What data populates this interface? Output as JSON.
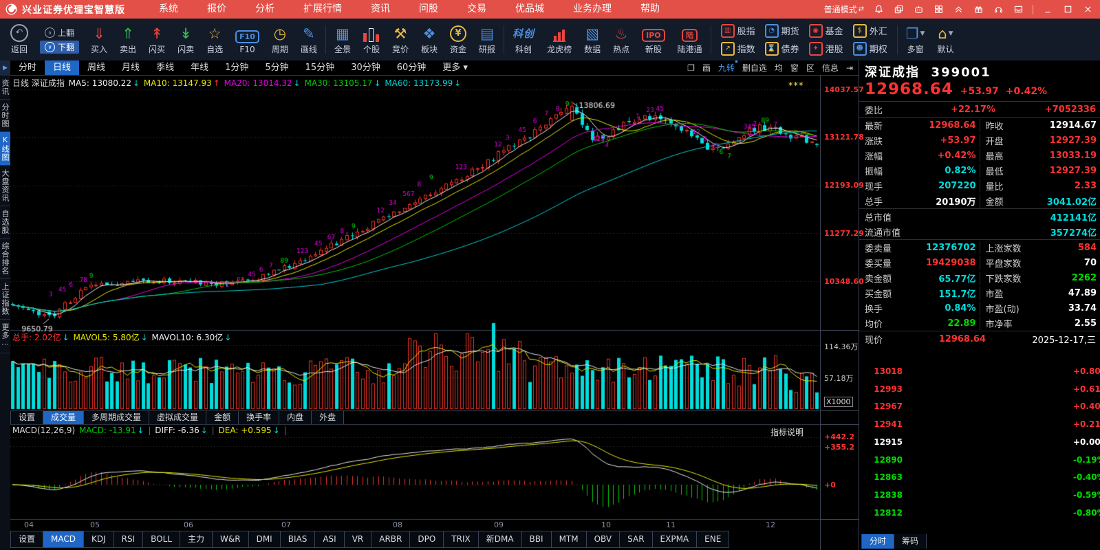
{
  "colors": {
    "accent_red": "#e25048",
    "up_red": "#ff3232",
    "down_cyan": "#00dcdc",
    "green": "#00dc00",
    "yellow": "#e8e800",
    "magenta": "#e800e8",
    "selected_blue": "#1f66c5",
    "panel_border": "#3a4254"
  },
  "titlebar": {
    "app_title": "兴业证券优理宝智慧版",
    "menus": [
      "系统",
      "报价",
      "分析",
      "扩展行情",
      "资讯",
      "问股",
      "交易",
      "优品城",
      "业务办理",
      "帮助"
    ],
    "mode_label": "普通模式",
    "mode_swap_icon": "⇄",
    "window_icons": [
      "bell",
      "window-copy",
      "robot",
      "apps-grid",
      "double-chevron-up",
      "gift",
      "headset",
      "inbox"
    ],
    "window_controls": [
      "minimize",
      "maximize",
      "close"
    ]
  },
  "toolbar": {
    "back_label": "返回",
    "flip_up": "上翻",
    "flip_down": "下翻",
    "items": [
      {
        "label": "买入",
        "icon": "buy-tray-icon",
        "glyph": "⇓",
        "color": "#e8463e"
      },
      {
        "label": "卖出",
        "icon": "sell-tray-icon",
        "glyph": "⇑",
        "color": "#37c14e"
      },
      {
        "label": "闪买",
        "icon": "flash-buy-cart-icon",
        "glyph": "↟",
        "color": "#e8463e"
      },
      {
        "label": "闪卖",
        "icon": "flash-sell-cart-icon",
        "glyph": "↡",
        "color": "#37c14e"
      },
      {
        "label": "自选",
        "icon": "star-icon",
        "glyph": "☆",
        "color": "#e8b93c"
      },
      {
        "label": "F10",
        "icon": "f10-icon",
        "glyph": "F10",
        "color": "#4a90e2",
        "style": "boxed"
      },
      {
        "label": "周期",
        "icon": "clock-icon",
        "glyph": "◷",
        "color": "#e8b93c"
      },
      {
        "label": "画线",
        "icon": "pencil-icon",
        "glyph": "✎",
        "color": "#4a90e2"
      },
      {
        "sep": true
      },
      {
        "label": "全景",
        "icon": "grid-icon",
        "glyph": "▦",
        "color": "#4a90e2"
      },
      {
        "label": "个股",
        "icon": "candles-icon",
        "glyph": "",
        "color": "#e8463e",
        "style": "candles"
      },
      {
        "label": "竞价",
        "icon": "gavel-icon",
        "glyph": "⚒",
        "color": "#e8b93c"
      },
      {
        "label": "板块",
        "icon": "puzzle-icon",
        "glyph": "❖",
        "color": "#4a90e2"
      },
      {
        "label": "资金",
        "icon": "yen-circle-icon",
        "glyph": "¥",
        "color": "#e8b93c",
        "style": "circled"
      },
      {
        "label": "研报",
        "icon": "report-doc-icon",
        "glyph": "▤",
        "color": "#4a90e2"
      },
      {
        "sep": true
      },
      {
        "label": "科创",
        "icon": "kechuang-logo-icon",
        "glyph": "科创",
        "color": "#4a90e2",
        "style": "textlogo"
      },
      {
        "label": "龙虎榜",
        "icon": "bar-chart-icon",
        "glyph": "",
        "color": "#e8463e",
        "style": "bars"
      },
      {
        "label": "数据",
        "icon": "data-monitor-icon",
        "glyph": "▧",
        "color": "#4a90e2"
      },
      {
        "label": "热点",
        "icon": "flame-icon",
        "glyph": "♨",
        "color": "#e8463e"
      },
      {
        "label": "新股",
        "icon": "ipo-doc-icon",
        "glyph": "IPO",
        "color": "#e8463e",
        "style": "boxed"
      },
      {
        "label": "陆港通",
        "icon": "lu-badge-icon",
        "glyph": "陆",
        "color": "#e8463e",
        "style": "boxed"
      },
      {
        "sep": true
      },
      {
        "grid": [
          {
            "label": "股指",
            "glyph": "▥",
            "color": "#e8463e"
          },
          {
            "label": "指数",
            "glyph": "↗",
            "color": "#e8b93c"
          },
          {
            "label": "期货",
            "glyph": "◔",
            "color": "#4a90e2"
          },
          {
            "label": "债券",
            "glyph": "⌛",
            "color": "#e8b93c"
          },
          {
            "label": "基金",
            "glyph": "◉",
            "color": "#e8463e"
          },
          {
            "label": "港股",
            "glyph": "✦",
            "color": "#e8463e"
          },
          {
            "label": "外汇",
            "glyph": "$",
            "color": "#e8b93c"
          },
          {
            "label": "期权",
            "glyph": "☻",
            "color": "#4a90e2"
          }
        ]
      },
      {
        "sep": true
      },
      {
        "label": "多窗",
        "icon": "multi-window-icon",
        "glyph": "❐",
        "color": "#4a90e2",
        "dropdown": true
      },
      {
        "label": "默认",
        "icon": "home-icon",
        "glyph": "⌂",
        "color": "#e8b93c",
        "dropdown": true
      }
    ]
  },
  "periodbar": {
    "tabs": [
      "分时",
      "日线",
      "周线",
      "月线",
      "季线",
      "年线",
      "1分钟",
      "5分钟",
      "15分钟",
      "30分钟",
      "60分钟"
    ],
    "selected": "日线",
    "more_label": "更多 ▾",
    "tools": [
      {
        "t": "❐"
      },
      {
        "t": "画"
      },
      {
        "t": "九转",
        "blue": true
      },
      {
        "t": "删自选"
      },
      {
        "t": "均"
      },
      {
        "t": "窗"
      },
      {
        "t": "区"
      },
      {
        "t": "信息"
      },
      {
        "t": "⇥"
      }
    ]
  },
  "sidebar": {
    "items": [
      "资讯",
      "分时图",
      "K线图",
      "大盘资讯",
      "自选股",
      "综合排名",
      "上证指数",
      "更多⋯"
    ],
    "selected": "K线图"
  },
  "kline_info": [
    {
      "t": "日线 深证成指 ",
      "c": "#dddddd"
    },
    {
      "t": "MA5: 13080.22",
      "c": "#f0f0f0"
    },
    {
      "t": "↓ ",
      "c": "#00dcdc"
    },
    {
      "t": "MA10: 13147.93",
      "c": "#e8e800"
    },
    {
      "t": "↑ ",
      "c": "#ff3232"
    },
    {
      "t": "MA20: 13014.32",
      "c": "#e800e8"
    },
    {
      "t": "↓ ",
      "c": "#00dcdc"
    },
    {
      "t": "MA30: 13105.17",
      "c": "#00c800"
    },
    {
      "t": "↓ ",
      "c": "#00dcdc"
    },
    {
      "t": "MA60: 13173.99",
      "c": "#00d2d2"
    },
    {
      "t": "↓",
      "c": "#00dcdc"
    }
  ],
  "volume_info": [
    {
      "t": "总手: 2.02亿",
      "c": "#ff3232"
    },
    {
      "t": "↓ ",
      "c": "#00dcdc"
    },
    {
      "t": "MAVOL5: 5.80亿",
      "c": "#e8e800"
    },
    {
      "t": "↓ ",
      "c": "#00dcdc"
    },
    {
      "t": "MAVOL10: 6.30亿",
      "c": "#f0f0f0"
    },
    {
      "t": "↓",
      "c": "#00dcdc"
    }
  ],
  "macd_info": [
    {
      "t": "MACD(12,26,9) ",
      "c": "#dddddd"
    },
    {
      "t": "MACD: -13.91",
      "c": "#00c800"
    },
    {
      "t": "↓",
      "c": "#00dcdc"
    },
    {
      "t": " | ",
      "c": "#666666"
    },
    {
      "t": "DIFF: -6.36",
      "c": "#f0f0f0"
    },
    {
      "t": "↓",
      "c": "#00dcdc"
    },
    {
      "t": " | ",
      "c": "#666666"
    },
    {
      "t": "DEA: +0.595",
      "c": "#e8e800"
    },
    {
      "t": "↓",
      "c": "#00dcdc"
    },
    {
      "t": " |",
      "c": "#666666"
    }
  ],
  "macd_note": "指标说明",
  "stars": "***",
  "gutter": {
    "price": [
      "14037.57",
      "13121.78",
      "12193.09",
      "11277.29",
      "10348.60"
    ],
    "volume": [
      "114.36万",
      "57.18万"
    ],
    "x1000": "X1000",
    "macd": [
      "+442.2",
      "+355.2",
      "+0"
    ]
  },
  "months": {
    "labels": [
      "04",
      "05",
      "06",
      "07",
      "08",
      "09",
      "10",
      "11",
      "12"
    ],
    "x": [
      20,
      116,
      252,
      394,
      556,
      703,
      859,
      953,
      1098
    ]
  },
  "volume_tabs": {
    "tabs": [
      "设置",
      "成交量",
      "多周期成交量",
      "虚拟成交量",
      "金额",
      "换手率",
      "内盘",
      "外盘"
    ],
    "selected": "成交量"
  },
  "indicator_tabs": {
    "tabs": [
      "设置",
      "MACD",
      "KDJ",
      "RSI",
      "BOLL",
      "主力",
      "W&R",
      "DMI",
      "BIAS",
      "ASI",
      "VR",
      "ARBR",
      "DPO",
      "TRIX",
      "新DMA",
      "BBI",
      "MTM",
      "OBV",
      "SAR",
      "EXPMA",
      "ENE"
    ],
    "selected": "MACD"
  },
  "quote": {
    "title": "深证成指",
    "code": "399001",
    "price": "12968.64",
    "chg": "+53.97",
    "pct": "+0.42%",
    "weibi": {
      "l": "委比",
      "v1": "+22.17%",
      "v2": "+7052336"
    },
    "rows_a": [
      {
        "l": "最新",
        "v": "12968.64",
        "c": "red",
        "l2": "昨收",
        "v2": "12914.67",
        "c2": "white"
      },
      {
        "l": "涨跌",
        "v": "+53.97",
        "c": "red",
        "l2": "开盘",
        "v2": "12927.39",
        "c2": "red"
      },
      {
        "l": "涨幅",
        "v": "+0.42%",
        "c": "red",
        "l2": "最高",
        "v2": "13033.19",
        "c2": "red"
      },
      {
        "l": "振幅",
        "v": "0.82%",
        "c": "cyan",
        "l2": "最低",
        "v2": "12927.39",
        "c2": "red"
      },
      {
        "l": "现手",
        "v": "207220",
        "c": "cyan",
        "l2": "量比",
        "v2": "2.33",
        "c2": "red"
      },
      {
        "l": "总手",
        "v": "20190万",
        "c": "white",
        "l2": "金额",
        "v2": "3041.02亿",
        "c2": "cyan"
      }
    ],
    "rows_full": [
      {
        "l": "总市值",
        "v": "412141亿",
        "c": "cyan"
      },
      {
        "l": "流通市值",
        "v": "357274亿",
        "c": "cyan"
      }
    ],
    "rows_b": [
      {
        "l": "委卖量",
        "v": "12376702",
        "c": "cyan",
        "l2": "上涨家数",
        "v2": "584",
        "c2": "red"
      },
      {
        "l": "委买量",
        "v": "19429038",
        "c": "red",
        "l2": "平盘家数",
        "v2": "70",
        "c2": "white"
      },
      {
        "l": "卖金额",
        "v": "65.77亿",
        "c": "cyan",
        "l2": "下跌家数",
        "v2": "2262",
        "c2": "green"
      },
      {
        "l": "买金额",
        "v": "151.7亿",
        "c": "cyan",
        "l2": "市盈",
        "v2": "47.89",
        "c2": "white"
      },
      {
        "l": "换手",
        "v": "0.84%",
        "c": "cyan",
        "l2": "市盈(动)",
        "v2": "33.74",
        "c2": "white"
      },
      {
        "l": "均价",
        "v": "22.89",
        "c": "green",
        "l2": "市净率",
        "v2": "2.55",
        "c2": "white"
      }
    ],
    "now_row": {
      "l": "现价",
      "v": "12968.64",
      "date": "2025-12-17,三"
    },
    "mini_tabs": {
      "tabs": [
        "分时",
        "筹码"
      ],
      "selected": "分时"
    }
  },
  "chart_data": {
    "type": "candlestick",
    "symbol": "深证成指",
    "code": "399001",
    "period": "日线",
    "price_gridlines": [
      14037.57,
      13121.78,
      12193.09,
      11277.29,
      10348.6
    ],
    "low_label": 9650.79,
    "peak_label": 13806.69,
    "last_close": 12968.64,
    "trend_anchors": [
      [
        0,
        9900
      ],
      [
        0.03,
        9740
      ],
      [
        0.05,
        9660
      ],
      [
        0.09,
        10260
      ],
      [
        0.13,
        10290
      ],
      [
        0.2,
        10380
      ],
      [
        0.27,
        10300
      ],
      [
        0.3,
        10380
      ],
      [
        0.34,
        10620
      ],
      [
        0.4,
        11050
      ],
      [
        0.46,
        11550
      ],
      [
        0.52,
        12050
      ],
      [
        0.575,
        12500
      ],
      [
        0.615,
        12880
      ],
      [
        0.66,
        13350
      ],
      [
        0.695,
        13760
      ],
      [
        0.72,
        13050
      ],
      [
        0.75,
        13250
      ],
      [
        0.78,
        13520
      ],
      [
        0.81,
        13430
      ],
      [
        0.84,
        13180
      ],
      [
        0.87,
        12870
      ],
      [
        0.9,
        13120
      ],
      [
        0.93,
        13320
      ],
      [
        0.955,
        13230
      ],
      [
        0.975,
        13120
      ],
      [
        1,
        12968.64
      ]
    ],
    "volume_gridlines_wan": [
      114.36,
      57.18
    ],
    "macd_gridlines": [
      442.2,
      355.2,
      0
    ],
    "nine_turn": [
      [
        0.05,
        10020,
        "3",
        "M"
      ],
      [
        0.062,
        10110,
        "45",
        "M"
      ],
      [
        0.075,
        10200,
        "6",
        "M"
      ],
      [
        0.088,
        10290,
        "78",
        "M"
      ],
      [
        0.1,
        10380,
        "9",
        "G"
      ],
      [
        0.268,
        10200,
        "1",
        "M"
      ],
      [
        0.282,
        10290,
        "23",
        "M"
      ],
      [
        0.296,
        10400,
        "45",
        "M"
      ],
      [
        0.31,
        10500,
        "6",
        "M"
      ],
      [
        0.322,
        10580,
        "7",
        "M"
      ],
      [
        0.336,
        10660,
        "89",
        "G"
      ],
      [
        0.356,
        10850,
        "123",
        "M"
      ],
      [
        0.378,
        11000,
        "45",
        "M"
      ],
      [
        0.394,
        11120,
        "67",
        "M"
      ],
      [
        0.41,
        11230,
        "8",
        "M"
      ],
      [
        0.424,
        11330,
        "9",
        "G"
      ],
      [
        0.455,
        11630,
        "12",
        "M"
      ],
      [
        0.47,
        11780,
        "34",
        "M"
      ],
      [
        0.487,
        11950,
        "567",
        "M"
      ],
      [
        0.505,
        12130,
        "8",
        "M"
      ],
      [
        0.52,
        12260,
        "9",
        "G"
      ],
      [
        0.552,
        12470,
        "123",
        "M"
      ],
      [
        0.6,
        12900,
        "12",
        "M"
      ],
      [
        0.614,
        13030,
        "3",
        "M"
      ],
      [
        0.63,
        13180,
        "45",
        "M"
      ],
      [
        0.648,
        13350,
        "6",
        "M"
      ],
      [
        0.662,
        13490,
        "7",
        "M"
      ],
      [
        0.676,
        13590,
        "8",
        "M"
      ],
      [
        0.688,
        13680,
        "9",
        "G"
      ],
      [
        0.722,
        13000,
        "123",
        "M"
      ],
      [
        0.737,
        12890,
        "4",
        "M"
      ],
      [
        0.775,
        13440,
        "1",
        "M"
      ],
      [
        0.788,
        13560,
        "23",
        "M"
      ],
      [
        0.8,
        13590,
        "45",
        "M"
      ],
      [
        0.845,
        13140,
        "12",
        "M"
      ],
      [
        0.858,
        13010,
        "3",
        "M"
      ],
      [
        0.868,
        12880,
        "45",
        "M"
      ],
      [
        0.878,
        12760,
        "6",
        "G"
      ],
      [
        0.888,
        12680,
        "7",
        "G"
      ],
      [
        0.908,
        13240,
        "345",
        "M"
      ],
      [
        0.92,
        13300,
        "2",
        "M"
      ],
      [
        0.93,
        13360,
        "89",
        "G"
      ],
      [
        0.945,
        13290,
        "7",
        "M"
      ]
    ],
    "mini_chart": {
      "left_labels": [
        [
          "13018",
          "red"
        ],
        [
          "12993",
          "red"
        ],
        [
          "12967",
          "red"
        ],
        [
          "12941",
          "red"
        ],
        [
          "12915",
          "white"
        ],
        [
          "12890",
          "green"
        ],
        [
          "12863",
          "green"
        ],
        [
          "12838",
          "green"
        ],
        [
          "12812",
          "green"
        ]
      ],
      "right_labels": [
        [
          "+0.80%",
          "red"
        ],
        [
          "+0.61%",
          "red"
        ],
        [
          "+0.40%",
          "red"
        ],
        [
          "+0.21%",
          "red"
        ],
        [
          "+0.00%",
          "white"
        ],
        [
          "-0.19%",
          "green"
        ],
        [
          "-0.40%",
          "green"
        ],
        [
          "-0.59%",
          "green"
        ],
        [
          "-0.80%",
          "green"
        ]
      ],
      "white_line": [
        [
          0,
          12927
        ],
        [
          0.008,
          12946
        ],
        [
          0.016,
          12938
        ],
        [
          0.024,
          12962
        ],
        [
          0.03,
          12950
        ],
        [
          0.036,
          12996
        ],
        [
          0.042,
          13018
        ],
        [
          0.048,
          13005
        ],
        [
          0.054,
          13033
        ],
        [
          0.06,
          13012
        ],
        [
          0.066,
          13025
        ],
        [
          0.072,
          12999
        ],
        [
          0.08,
          12984
        ],
        [
          0.088,
          12994
        ],
        [
          0.096,
          12972
        ],
        [
          0.104,
          12965
        ],
        [
          0.112,
          12977
        ],
        [
          0.12,
          12958
        ],
        [
          0.13,
          12962
        ],
        [
          0.138,
          12968.64
        ]
      ],
      "yellow_line": [
        [
          0,
          12922
        ],
        [
          0.01,
          12912
        ],
        [
          0.02,
          12900
        ],
        [
          0.028,
          12925
        ],
        [
          0.034,
          12895
        ],
        [
          0.04,
          12868
        ],
        [
          0.048,
          12888
        ],
        [
          0.056,
          12852
        ],
        [
          0.064,
          12838
        ],
        [
          0.072,
          12858
        ],
        [
          0.08,
          12818
        ],
        [
          0.09,
          12798
        ],
        [
          0.098,
          12810
        ],
        [
          0.108,
          12792
        ],
        [
          0.118,
          12800
        ],
        [
          0.128,
          12786
        ],
        [
          0.138,
          12780
        ]
      ]
    }
  }
}
